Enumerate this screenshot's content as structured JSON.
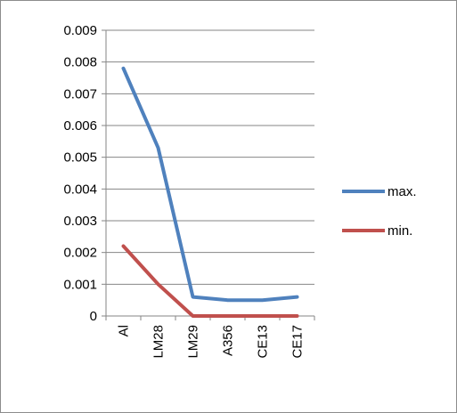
{
  "chart_data": {
    "type": "line",
    "categories": [
      "Al",
      "LM28",
      "LM29",
      "A356",
      "CE13",
      "CE17"
    ],
    "series": [
      {
        "name": "max.",
        "values": [
          0.0078,
          0.0053,
          0.0006,
          0.0005,
          0.0005,
          0.0006
        ],
        "color": "#4f81bd"
      },
      {
        "name": "min.",
        "values": [
          0.0022,
          0.001,
          0.0,
          0.0,
          0.0,
          0.0
        ],
        "color": "#c0504d"
      }
    ],
    "yticks": [
      "0",
      "0.001",
      "0.002",
      "0.003",
      "0.004",
      "0.005",
      "0.006",
      "0.007",
      "0.008",
      "0.009"
    ],
    "ylim": [
      0,
      0.009
    ],
    "grid": true,
    "legend_position": "right"
  }
}
